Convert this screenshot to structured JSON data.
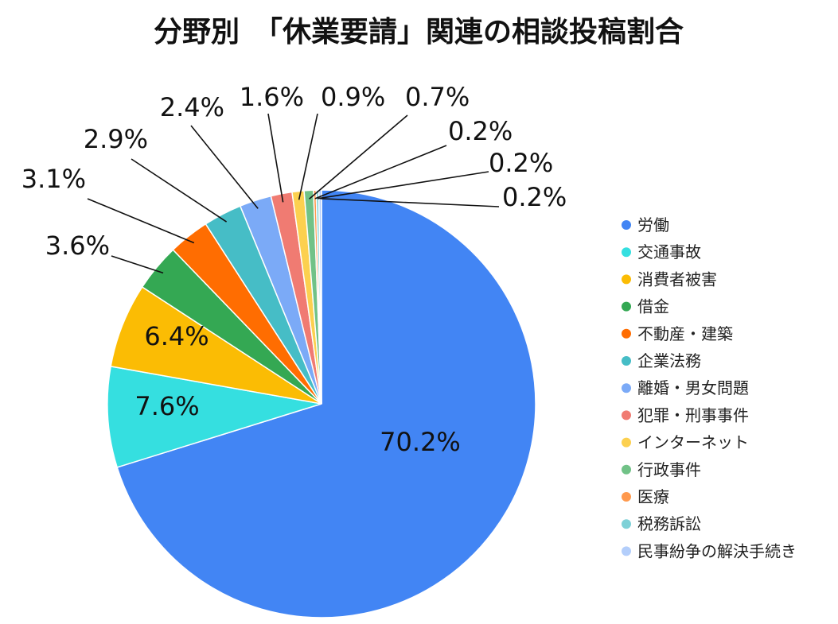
{
  "chart_data": {
    "type": "pie",
    "title": "分野別　「休業要請」関連の相談投稿割合",
    "categories": [
      "労働",
      "交通事故",
      "消費者被害",
      "借金",
      "不動産・建築",
      "企業法務",
      "離婚・男女問題",
      "犯罪・刑事事件",
      "インターネット",
      "行政事件",
      "医療",
      "税務訴訟",
      "民事紛争の解決手続き"
    ],
    "values": [
      70.2,
      7.6,
      6.4,
      3.6,
      3.1,
      2.9,
      2.4,
      1.6,
      0.9,
      0.7,
      0.2,
      0.2,
      0.2
    ],
    "labels": [
      "70.2%",
      "7.6%",
      "6.4%",
      "3.6%",
      "3.1%",
      "2.9%",
      "2.4%",
      "1.6%",
      "0.9%",
      "0.7%",
      "0.2%",
      "0.2%",
      "0.2%"
    ],
    "colors": [
      "#4285f4",
      "#35dfe0",
      "#fbbc04",
      "#34a853",
      "#ff6d01",
      "#46bdc6",
      "#7baaf7",
      "#f07b72",
      "#fcd04f",
      "#71c287",
      "#ff994d",
      "#7ed1d7",
      "#b3cefb"
    ],
    "legend_position": "right"
  }
}
